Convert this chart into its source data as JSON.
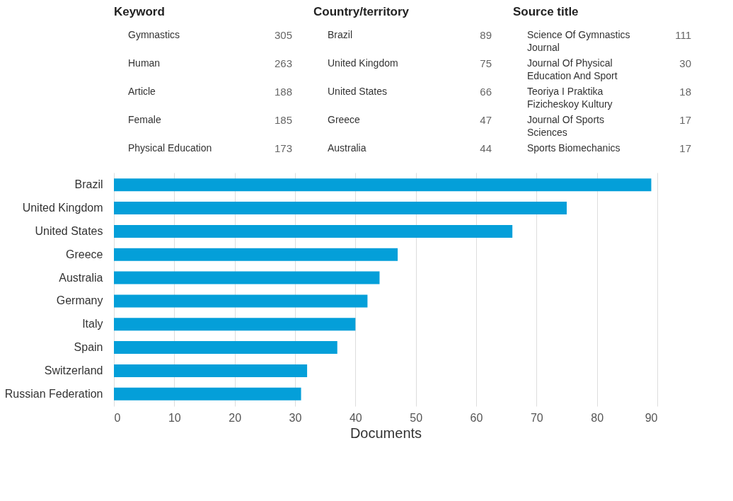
{
  "chart_data": [
    {
      "type": "other",
      "title": "Keyword",
      "categories": [
        "Gymnastics",
        "Human",
        "Article",
        "Female",
        "Physical Education"
      ],
      "values": [
        305,
        263,
        188,
        185,
        173
      ],
      "data_labels": true
    },
    {
      "type": "other",
      "title": "Country/territory",
      "categories": [
        "Brazil",
        "United Kingdom",
        "United States",
        "Greece",
        "Australia"
      ],
      "values": [
        89,
        75,
        66,
        47,
        44
      ],
      "data_labels": true
    },
    {
      "type": "other",
      "title": "Source title",
      "categories": [
        "Science Of Gymnastics Journal",
        "Journal Of Physical Education And Sport",
        "Teoriya I Praktika Fizicheskoy Kultury",
        "Journal Of Sports Sciences",
        "Sports Biomechanics"
      ],
      "values": [
        111,
        30,
        18,
        17,
        17
      ],
      "data_labels": true
    },
    {
      "type": "bar",
      "orientation": "horizontal",
      "xlabel": "Documents",
      "color": "#049fd9",
      "categories": [
        "Brazil",
        "United Kingdom",
        "United States",
        "Greece",
        "Australia",
        "Germany",
        "Italy",
        "Spain",
        "Switzerland",
        "Russian Federation"
      ],
      "values": [
        89,
        75,
        66,
        47,
        44,
        42,
        40,
        37,
        32,
        31
      ],
      "xlim": [
        0,
        90
      ],
      "xticks": [
        0,
        10,
        20,
        30,
        40,
        50,
        60,
        70,
        80,
        90
      ],
      "grid": true
    }
  ]
}
